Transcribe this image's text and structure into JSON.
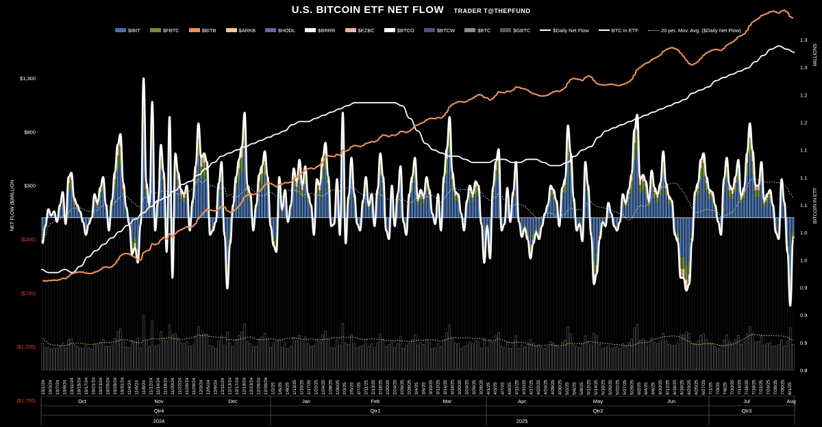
{
  "title": {
    "main": "U.S. BITCOIN ETF NET FLOW",
    "sub": "TRADER T@THEPFUND"
  },
  "legend": [
    {
      "label": "$IBIT",
      "color": "#4a6fa5",
      "kind": "bar"
    },
    {
      "label": "$FBTC",
      "color": "#6f8f3a",
      "kind": "bar"
    },
    {
      "label": "$BITB",
      "color": "#e8905a",
      "kind": "bar"
    },
    {
      "label": "$ARKB",
      "color": "#f2c7a2",
      "kind": "bar"
    },
    {
      "label": "$HODL",
      "color": "#7b5aa6",
      "kind": "bar"
    },
    {
      "label": "$BRRR",
      "color": "#ffffff",
      "kind": "bar"
    },
    {
      "label": "$EZBC",
      "color": "#e3b8a8",
      "kind": "bar"
    },
    {
      "label": "$BTCO",
      "color": "#ffffff",
      "kind": "bar"
    },
    {
      "label": "$BTCW",
      "color": "#5d4a80",
      "kind": "bar"
    },
    {
      "label": "$BTC",
      "color": "#8a8a8a",
      "kind": "bar"
    },
    {
      "label": "$GBTC",
      "color": "#555555",
      "kind": "bar"
    },
    {
      "label": "$Daily Net Flow",
      "color": "#ffffff",
      "kind": "line"
    },
    {
      "label": "BTC in ETF",
      "color": "#ffffff",
      "kind": "line"
    },
    {
      "label": "20 per. Mov. Avg. ($Daily Net Flow)",
      "color": "#ffffff",
      "kind": "dotted"
    }
  ],
  "chart_data": {
    "type": "bar",
    "title": "U.S. BITCOIN ETF NET FLOW",
    "ylabel": "NET FLOW ($)MILLION",
    "y2label": "BITCOIN IN ETF",
    "y2unit": "MILLIONS",
    "y_ticks": [
      "$1,300",
      "$800",
      "$300",
      "($200)",
      "($700)",
      "($1,200)",
      "($1,700)"
    ],
    "y_tick_values": [
      1300,
      800,
      300,
      -200,
      -700,
      -1200,
      -1700
    ],
    "ylim": [
      -1700,
      1300
    ],
    "y2_ticks": [
      "1.3",
      "1.3",
      "1.2",
      "1.2",
      "1.1",
      "1.1",
      "1.1",
      "1.0",
      "1.0",
      "0.9",
      "0.9",
      "0.9",
      "0.8"
    ],
    "x_ticks": [
      "10/1/24",
      "10/3/24",
      "10/7/24",
      "10/9/24",
      "10/11/24",
      "10/15/24",
      "10/17/24",
      "10/21/24",
      "10/23/24",
      "10/25/24",
      "10/29/24",
      "10/31/24",
      "11/4/24",
      "11/6/24",
      "11/8/24",
      "11/12/24",
      "11/14/24",
      "11/18/24",
      "11/20/24",
      "11/22/24",
      "11/26/24",
      "11/29/24",
      "12/3/24",
      "12/5/24",
      "12/9/24",
      "12/11/24",
      "12/13/24",
      "12/17/24",
      "12/19/24",
      "12/23/24",
      "12/26/24",
      "12/30/24",
      "1/2/25",
      "1/6/25",
      "1/8/25",
      "1/13/25",
      "1/15/25",
      "1/17/25",
      "1/22/25",
      "1/24/25",
      "1/28/25",
      "1/30/25",
      "2/3/25",
      "2/5/25",
      "2/7/25",
      "2/11/25",
      "2/13/25",
      "2/18/25",
      "2/20/25",
      "2/24/25",
      "2/26/25",
      "2/28/25",
      "3/4/25",
      "3/6/25",
      "3/10/25",
      "3/12/25",
      "3/14/25",
      "3/18/25",
      "3/20/25",
      "3/24/25",
      "3/26/25",
      "3/28/25",
      "4/1/25",
      "4/3/25",
      "4/7/25",
      "4/9/25",
      "4/11/25",
      "4/15/25",
      "4/17/25",
      "4/22/25",
      "4/24/25",
      "4/28/25",
      "4/30/25",
      "5/2/25",
      "5/6/25",
      "5/8/25",
      "5/12/25",
      "5/14/25",
      "5/16/25",
      "5/20/25",
      "5/22/25",
      "5/27/25",
      "5/29/25",
      "6/2/25",
      "6/4/25",
      "6/6/25",
      "6/10/25",
      "6/12/25",
      "6/16/25",
      "6/18/25",
      "6/23/25",
      "6/25/25",
      "6/27/25",
      "7/1/25",
      "7/3/25",
      "7/8/25",
      "7/10/25",
      "7/14/25",
      "7/16/25",
      "7/18/25",
      "7/22/25",
      "7/24/25",
      "7/28/25",
      "7/30/25",
      "8/1/25"
    ],
    "months": [
      "Oct",
      "Nov",
      "Dec",
      "Jan",
      "Feb",
      "Mar",
      "Apr",
      "May",
      "Jun",
      "Jul",
      "Aug"
    ],
    "quarters": [
      "Qtr4",
      "Qtr1",
      "Qtr2",
      "Qtr3"
    ],
    "years": [
      "2024",
      "2025"
    ],
    "daily_net_flow": [
      -240,
      -80,
      80,
      20,
      60,
      -40,
      120,
      240,
      -60,
      380,
      420,
      180,
      120,
      60,
      -40,
      -160,
      -60,
      0,
      220,
      140,
      280,
      380,
      120,
      -120,
      160,
      420,
      680,
      780,
      320,
      100,
      -60,
      -340,
      -280,
      -420,
      -60,
      1300,
      320,
      120,
      1080,
      -120,
      160,
      680,
      420,
      -320,
      940,
      -560,
      600,
      420,
      260,
      220,
      300,
      -120,
      160,
      480,
      880,
      560,
      600,
      520,
      -160,
      -120,
      -40,
      320,
      520,
      -160,
      -660,
      -240,
      120,
      380,
      540,
      660,
      980,
      300,
      220,
      -120,
      120,
      400,
      480,
      620,
      380,
      -80,
      -260,
      -320,
      380,
      80,
      260,
      -40,
      120,
      460,
      340,
      540,
      300,
      480,
      220,
      120,
      -160,
      360,
      300,
      560,
      700,
      380,
      -80,
      -60,
      360,
      -160,
      980,
      -240,
      200,
      560,
      220,
      -60,
      -120,
      160,
      380,
      120,
      220,
      -80,
      260,
      600,
      380,
      -120,
      -200,
      300,
      -80,
      220,
      480,
      -40,
      -160,
      220,
      380,
      560,
      180,
      260,
      200,
      380,
      260,
      40,
      -60,
      220,
      -120,
      380,
      640,
      940,
      420,
      240,
      220,
      40,
      -120,
      160,
      300,
      220,
      340,
      300,
      -60,
      -420,
      -80,
      -380,
      280,
      520,
      640,
      -120,
      -60,
      280,
      -40,
      240,
      520,
      -40,
      -180,
      -100,
      -200,
      -380,
      -240,
      -140,
      -200,
      -80,
      40,
      120,
      300,
      260,
      160,
      -80,
      280,
      360,
      860,
      600,
      180,
      -120,
      -60,
      -220,
      520,
      300,
      -160,
      -620,
      -520,
      -200,
      -40,
      -80,
      140,
      40,
      -80,
      -120,
      -40,
      220,
      140,
      260,
      400,
      820,
      960,
      360,
      400,
      340,
      160,
      440,
      280,
      220,
      320,
      620,
      320,
      200,
      160,
      -160,
      -220,
      -560,
      -560,
      -680,
      -620,
      -220,
      240,
      320,
      540,
      600,
      380,
      260,
      240,
      120,
      -40,
      -160,
      360,
      560,
      300,
      260,
      380,
      540,
      200,
      280,
      600,
      880,
      620,
      300,
      300,
      520,
      160,
      220,
      260,
      120,
      -140,
      -200,
      360,
      140,
      -320,
      -820,
      -200
    ],
    "btc_in_etf": [
      0.96,
      0.955,
      0.955,
      0.96,
      0.955,
      0.965,
      0.98,
      0.99,
      1.0,
      1.01,
      1.02,
      1.03,
      1.04,
      1.05,
      1.06,
      1.07,
      1.075,
      1.085,
      1.095,
      1.1,
      1.11,
      1.12,
      1.13,
      1.14,
      1.145,
      1.15,
      1.155,
      1.16,
      1.165,
      1.17,
      1.175,
      1.18,
      1.19,
      1.195,
      1.195,
      1.2,
      1.205,
      1.21,
      1.215,
      1.22,
      1.225,
      1.225,
      1.225,
      1.225,
      1.225,
      1.225,
      1.22,
      1.2,
      1.18,
      1.16,
      1.15,
      1.145,
      1.14,
      1.14,
      1.135,
      1.13,
      1.13,
      1.13,
      1.135,
      1.135,
      1.13,
      1.13,
      1.135,
      1.135,
      1.13,
      1.125,
      1.125,
      1.13,
      1.14,
      1.15,
      1.155,
      1.17,
      1.18,
      1.185,
      1.19,
      1.195,
      1.2,
      1.205,
      1.21,
      1.215,
      1.22,
      1.225,
      1.23,
      1.24,
      1.245,
      1.25,
      1.26,
      1.265,
      1.27,
      1.275,
      1.28,
      1.29,
      1.3,
      1.31,
      1.315,
      1.31,
      1.305
    ]
  }
}
